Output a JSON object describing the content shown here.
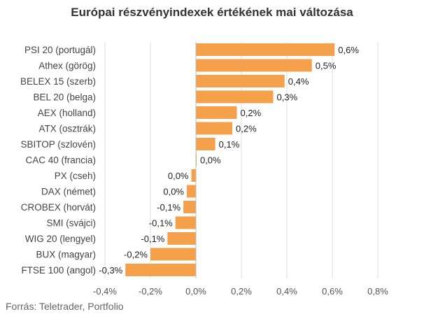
{
  "title": "Európai részvényindexek értékének mai változása",
  "source": "Forrás: Teletrader, Portfolio",
  "chart_data": {
    "type": "bar",
    "orientation": "horizontal",
    "title": "Európai részvényindexek értékének mai változása",
    "categories": [
      "PSI 20 (portugál)",
      "Athex (görög)",
      "BELEX 15 (szerb)",
      "BEL 20 (belga)",
      "AEX (holland)",
      "ATX (osztrák)",
      "SBITOP (szlovén)",
      "CAC 40 (francia)",
      "PX (cseh)",
      "DAX (német)",
      "CROBEX (horvát)",
      "SMI (svájci)",
      "WIG 20 (lengyel)",
      "BUX (magyar)",
      "FTSE 100 (angol)"
    ],
    "values": [
      0.61,
      0.51,
      0.39,
      0.34,
      0.18,
      0.16,
      0.085,
      0.003,
      -0.02,
      -0.04,
      -0.055,
      -0.09,
      -0.125,
      -0.2,
      -0.31
    ],
    "value_labels": [
      "0,6%",
      "0,5%",
      "0,4%",
      "0,3%",
      "0,2%",
      "0,2%",
      "0,1%",
      "0,0%",
      "0,0%",
      "0,0%",
      "-0,1%",
      "-0,1%",
      "-0,1%",
      "-0,2%",
      "-0,3%"
    ],
    "xlim": [
      -0.4,
      0.8
    ],
    "xticks": [
      -0.4,
      -0.2,
      0.0,
      0.2,
      0.4,
      0.6,
      0.8
    ],
    "xtick_labels": [
      "-0,4%",
      "-0,2%",
      "0,0%",
      "0,2%",
      "0,4%",
      "0,6%",
      "0,8%"
    ],
    "grid": "vertical",
    "bar_color": "#f5a04a",
    "grid_color": "#dddddd",
    "axis_color": "#bbbbbb"
  }
}
